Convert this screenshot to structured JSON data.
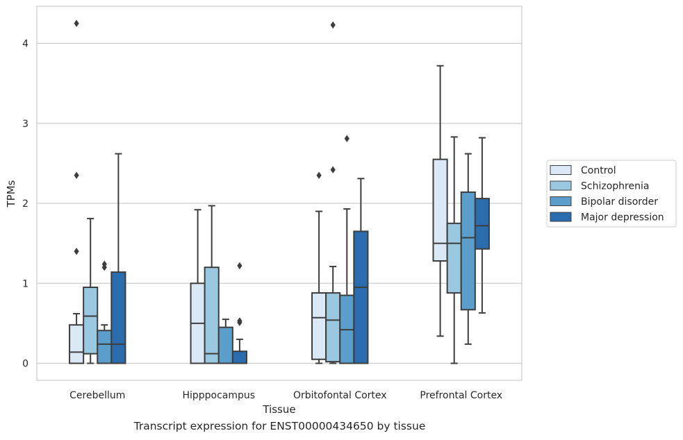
{
  "caption": "Transcript expression for ENST00000434650 by tissue",
  "chart_data": {
    "type": "box",
    "xlabel": "Tissue",
    "ylabel": "TPMs",
    "ylim": [
      -0.2,
      4.45
    ],
    "yticks": [
      0,
      1,
      2,
      3,
      4
    ],
    "grid": "horizontal",
    "legend_position": "right",
    "categories": [
      "Cerebellum",
      "Hipppocampus",
      "Orbitofontal Cortex",
      "Prefrontal Cortex"
    ],
    "series": [
      {
        "name": "Control",
        "color": "#dbe9f6",
        "boxes": [
          {
            "whisker_low": 0,
            "q1": 0,
            "median": 0.14,
            "q3": 0.48,
            "whisker_high": 0.62,
            "outliers": [
              1.4,
              2.35,
              4.25
            ]
          },
          {
            "whisker_low": 0,
            "q1": 0,
            "median": 0.5,
            "q3": 1.0,
            "whisker_high": 1.92,
            "outliers": []
          },
          {
            "whisker_low": 0,
            "q1": 0.05,
            "median": 0.57,
            "q3": 0.88,
            "whisker_high": 1.9,
            "outliers": [
              2.35
            ]
          },
          {
            "whisker_low": 0.34,
            "q1": 1.28,
            "median": 1.5,
            "q3": 2.55,
            "whisker_high": 3.72,
            "outliers": []
          }
        ]
      },
      {
        "name": "Schizophrenia",
        "color": "#9ac8e0",
        "boxes": [
          {
            "whisker_low": 0,
            "q1": 0.12,
            "median": 0.59,
            "q3": 0.95,
            "whisker_high": 1.81,
            "outliers": []
          },
          {
            "whisker_low": 0,
            "q1": 0,
            "median": 0.12,
            "q3": 1.2,
            "whisker_high": 1.97,
            "outliers": []
          },
          {
            "whisker_low": 0,
            "q1": 0.02,
            "median": 0.54,
            "q3": 0.88,
            "whisker_high": 1.21,
            "outliers": [
              2.42,
              4.23
            ]
          },
          {
            "whisker_low": 0,
            "q1": 0.88,
            "median": 1.5,
            "q3": 1.75,
            "whisker_high": 2.83,
            "outliers": []
          }
        ]
      },
      {
        "name": "Bipolar disorder",
        "color": "#5b9ecb",
        "boxes": [
          {
            "whisker_low": 0,
            "q1": 0,
            "median": 0.24,
            "q3": 0.41,
            "whisker_high": 0.48,
            "outliers": [
              1.2,
              1.24
            ]
          },
          {
            "whisker_low": 0,
            "q1": 0,
            "median": 0,
            "q3": 0.45,
            "whisker_high": 0.55,
            "outliers": []
          },
          {
            "whisker_low": 0,
            "q1": 0,
            "median": 0.42,
            "q3": 0.85,
            "whisker_high": 1.93,
            "outliers": [
              2.81
            ]
          },
          {
            "whisker_low": 0.24,
            "q1": 0.67,
            "median": 1.57,
            "q3": 2.14,
            "whisker_high": 2.62,
            "outliers": []
          }
        ]
      },
      {
        "name": "Major depression",
        "color": "#2a6cad",
        "boxes": [
          {
            "whisker_low": 0,
            "q1": 0,
            "median": 0.24,
            "q3": 1.14,
            "whisker_high": 2.62,
            "outliers": []
          },
          {
            "whisker_low": 0,
            "q1": 0,
            "median": 0,
            "q3": 0.15,
            "whisker_high": 0.3,
            "outliers": [
              0.51,
              0.53,
              1.22
            ]
          },
          {
            "whisker_low": 0,
            "q1": 0,
            "median": 0.95,
            "q3": 1.65,
            "whisker_high": 2.31,
            "outliers": []
          },
          {
            "whisker_low": 0.63,
            "q1": 1.43,
            "median": 1.72,
            "q3": 2.06,
            "whisker_high": 2.82,
            "outliers": []
          }
        ]
      }
    ]
  }
}
